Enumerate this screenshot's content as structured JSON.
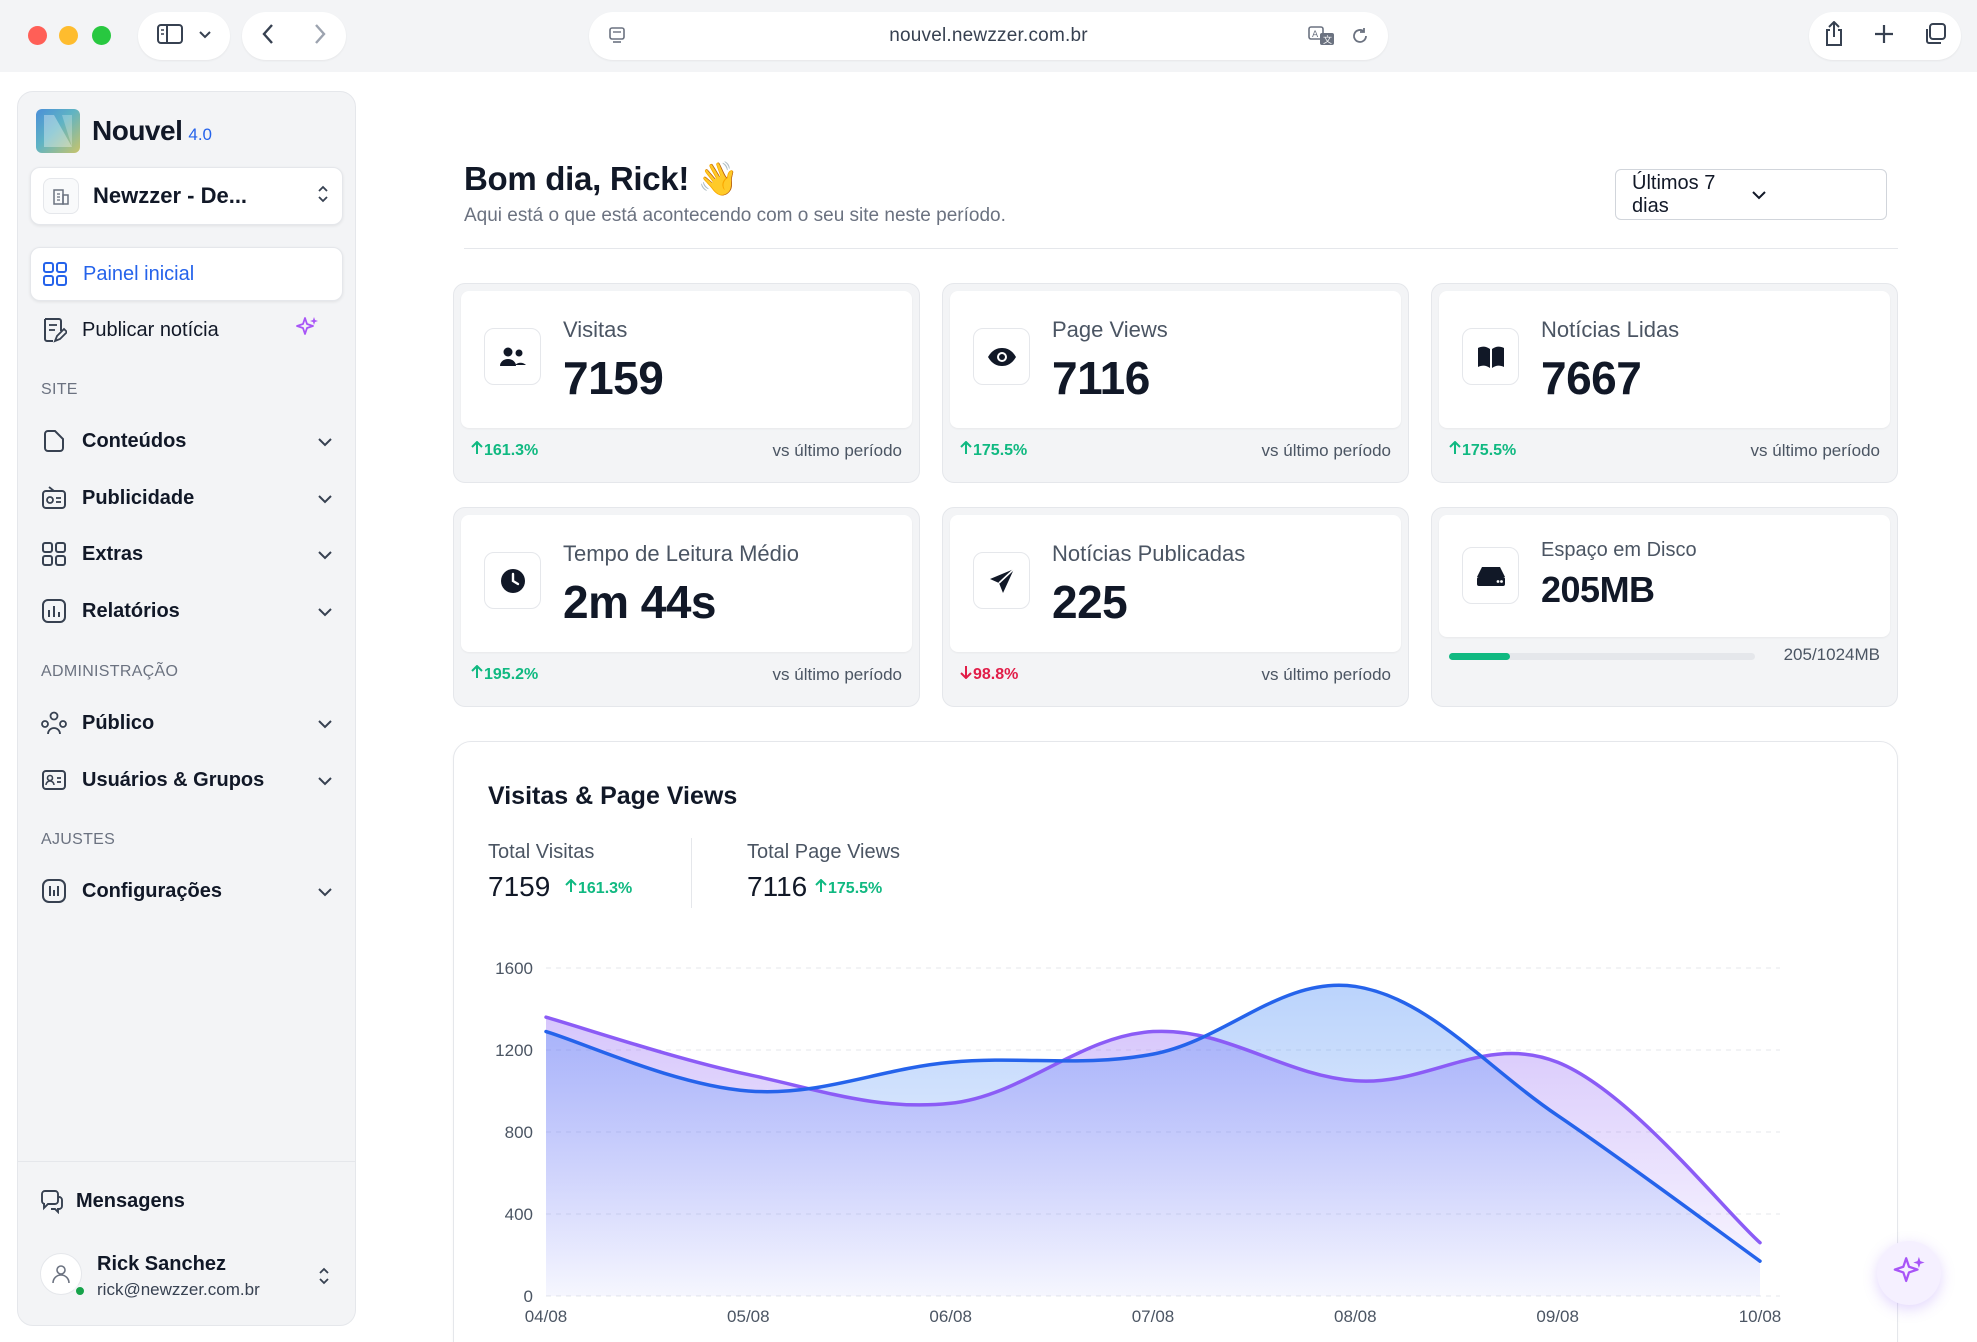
{
  "browser": {
    "url": "nouvel.newzzer.com.br"
  },
  "sidebar": {
    "brand_name": "Nouvel",
    "brand_version": "4.0",
    "site_selector": "Newzzer - De...",
    "primary": [
      {
        "label": "Painel inicial",
        "icon": "grid-icon",
        "active": true
      },
      {
        "label": "Publicar notícia",
        "icon": "publish-icon",
        "badge_icon": "sparkle-icon"
      }
    ],
    "sections": [
      {
        "title": "SITE",
        "items": [
          {
            "label": "Conteúdos",
            "icon": "file-icon"
          },
          {
            "label": "Publicidade",
            "icon": "ad-icon"
          },
          {
            "label": "Extras",
            "icon": "grid-icon"
          },
          {
            "label": "Relatórios",
            "icon": "bar-chart-icon"
          }
        ]
      },
      {
        "title": "ADMINISTRAÇÃO",
        "items": [
          {
            "label": "Público",
            "icon": "audience-icon"
          },
          {
            "label": "Usuários & Grupos",
            "icon": "id-card-icon"
          }
        ]
      },
      {
        "title": "AJUSTES",
        "items": [
          {
            "label": "Configurações",
            "icon": "settings-icon"
          }
        ]
      }
    ],
    "messages_label": "Mensagens",
    "user": {
      "name": "Rick Sanchez",
      "email": "rick@newzzer.com.br",
      "status_color": "#16a34a"
    }
  },
  "header": {
    "greeting": "Bom dia, Rick! 👋",
    "subtitle": "Aqui está o que está acontecendo com o seu site neste período.",
    "period": "Últimos 7 dias"
  },
  "stats": [
    {
      "title": "Visitas",
      "value": "7159",
      "trend": "161.3%",
      "direction": "up",
      "vs": "vs último período",
      "icon": "users-icon"
    },
    {
      "title": "Page Views",
      "value": "7116",
      "trend": "175.5%",
      "direction": "up",
      "vs": "vs último período",
      "icon": "eye-icon"
    },
    {
      "title": "Notícias Lidas",
      "value": "7667",
      "trend": "175.5%",
      "direction": "up",
      "vs": "vs último período",
      "icon": "book-icon"
    },
    {
      "title": "Tempo de Leitura Médio",
      "value": "2m 44s",
      "trend": "195.2%",
      "direction": "up",
      "vs": "vs último período",
      "icon": "clock-icon"
    },
    {
      "title": "Notícias Publicadas",
      "value": "225",
      "trend": "98.8%",
      "direction": "down",
      "vs": "vs último período",
      "icon": "send-icon"
    }
  ],
  "disk": {
    "title": "Espaço em Disco",
    "value": "205MB",
    "usage_text": "205/1024MB",
    "used_fraction": 0.2,
    "icon": "drive-icon"
  },
  "chart_section": {
    "title": "Visitas & Page Views",
    "kpis": [
      {
        "label": "Total Visitas",
        "value": "7159",
        "trend": "161.3%"
      },
      {
        "label": "Total Page Views",
        "value": "7116",
        "trend": "175.5%"
      }
    ]
  },
  "chart_data": {
    "type": "area",
    "categories": [
      "04/08",
      "05/08",
      "06/08",
      "07/08",
      "08/08",
      "09/08",
      "10/08"
    ],
    "ylim": [
      0,
      1600
    ],
    "yticks": [
      "1600",
      "1200",
      "800",
      "400",
      "0"
    ],
    "grid": true,
    "series": [
      {
        "values": [
          1360,
          1080,
          940,
          1290,
          1050,
          1140,
          260
        ],
        "color": "#8b5cf6"
      },
      {
        "values": [
          1290,
          1000,
          1140,
          1180,
          1510,
          880,
          170
        ],
        "color": "#2563eb"
      }
    ]
  },
  "colors": {
    "accent": "#2563eb",
    "positive": "#10b981",
    "negative": "#e11d48"
  }
}
